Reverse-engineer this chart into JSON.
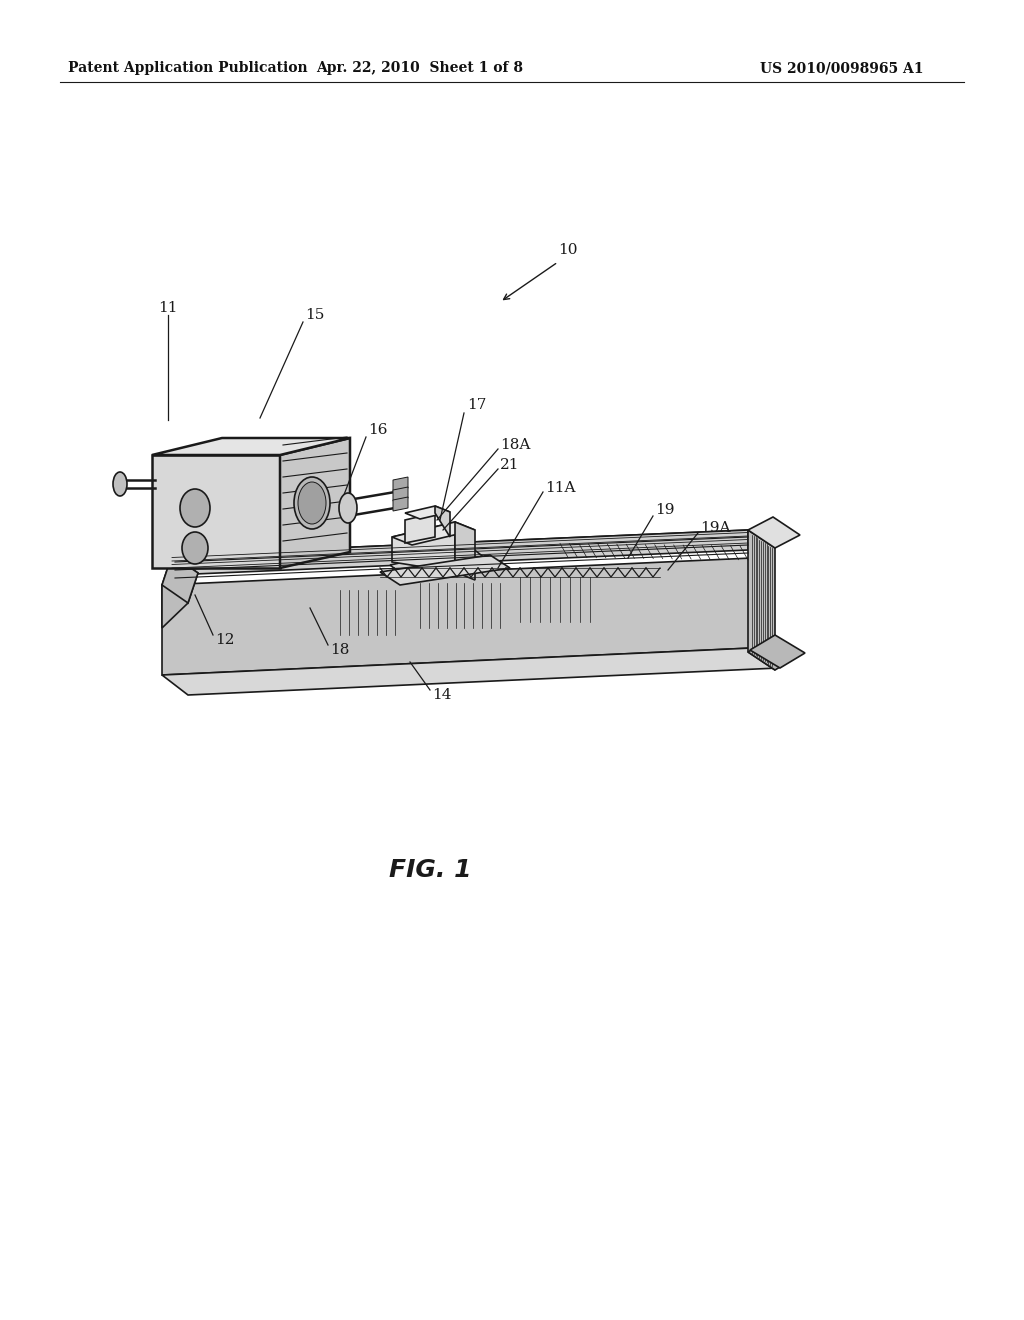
{
  "bg_color": "#ffffff",
  "line_color": "#1a1a1a",
  "header_left": "Patent Application Publication",
  "header_mid": "Apr. 22, 2010  Sheet 1 of 8",
  "header_right": "US 2010/0098965 A1",
  "fig_label": "FIG. 1",
  "header_fontsize": 10,
  "fig_label_fontsize": 18,
  "label_fontsize": 11
}
